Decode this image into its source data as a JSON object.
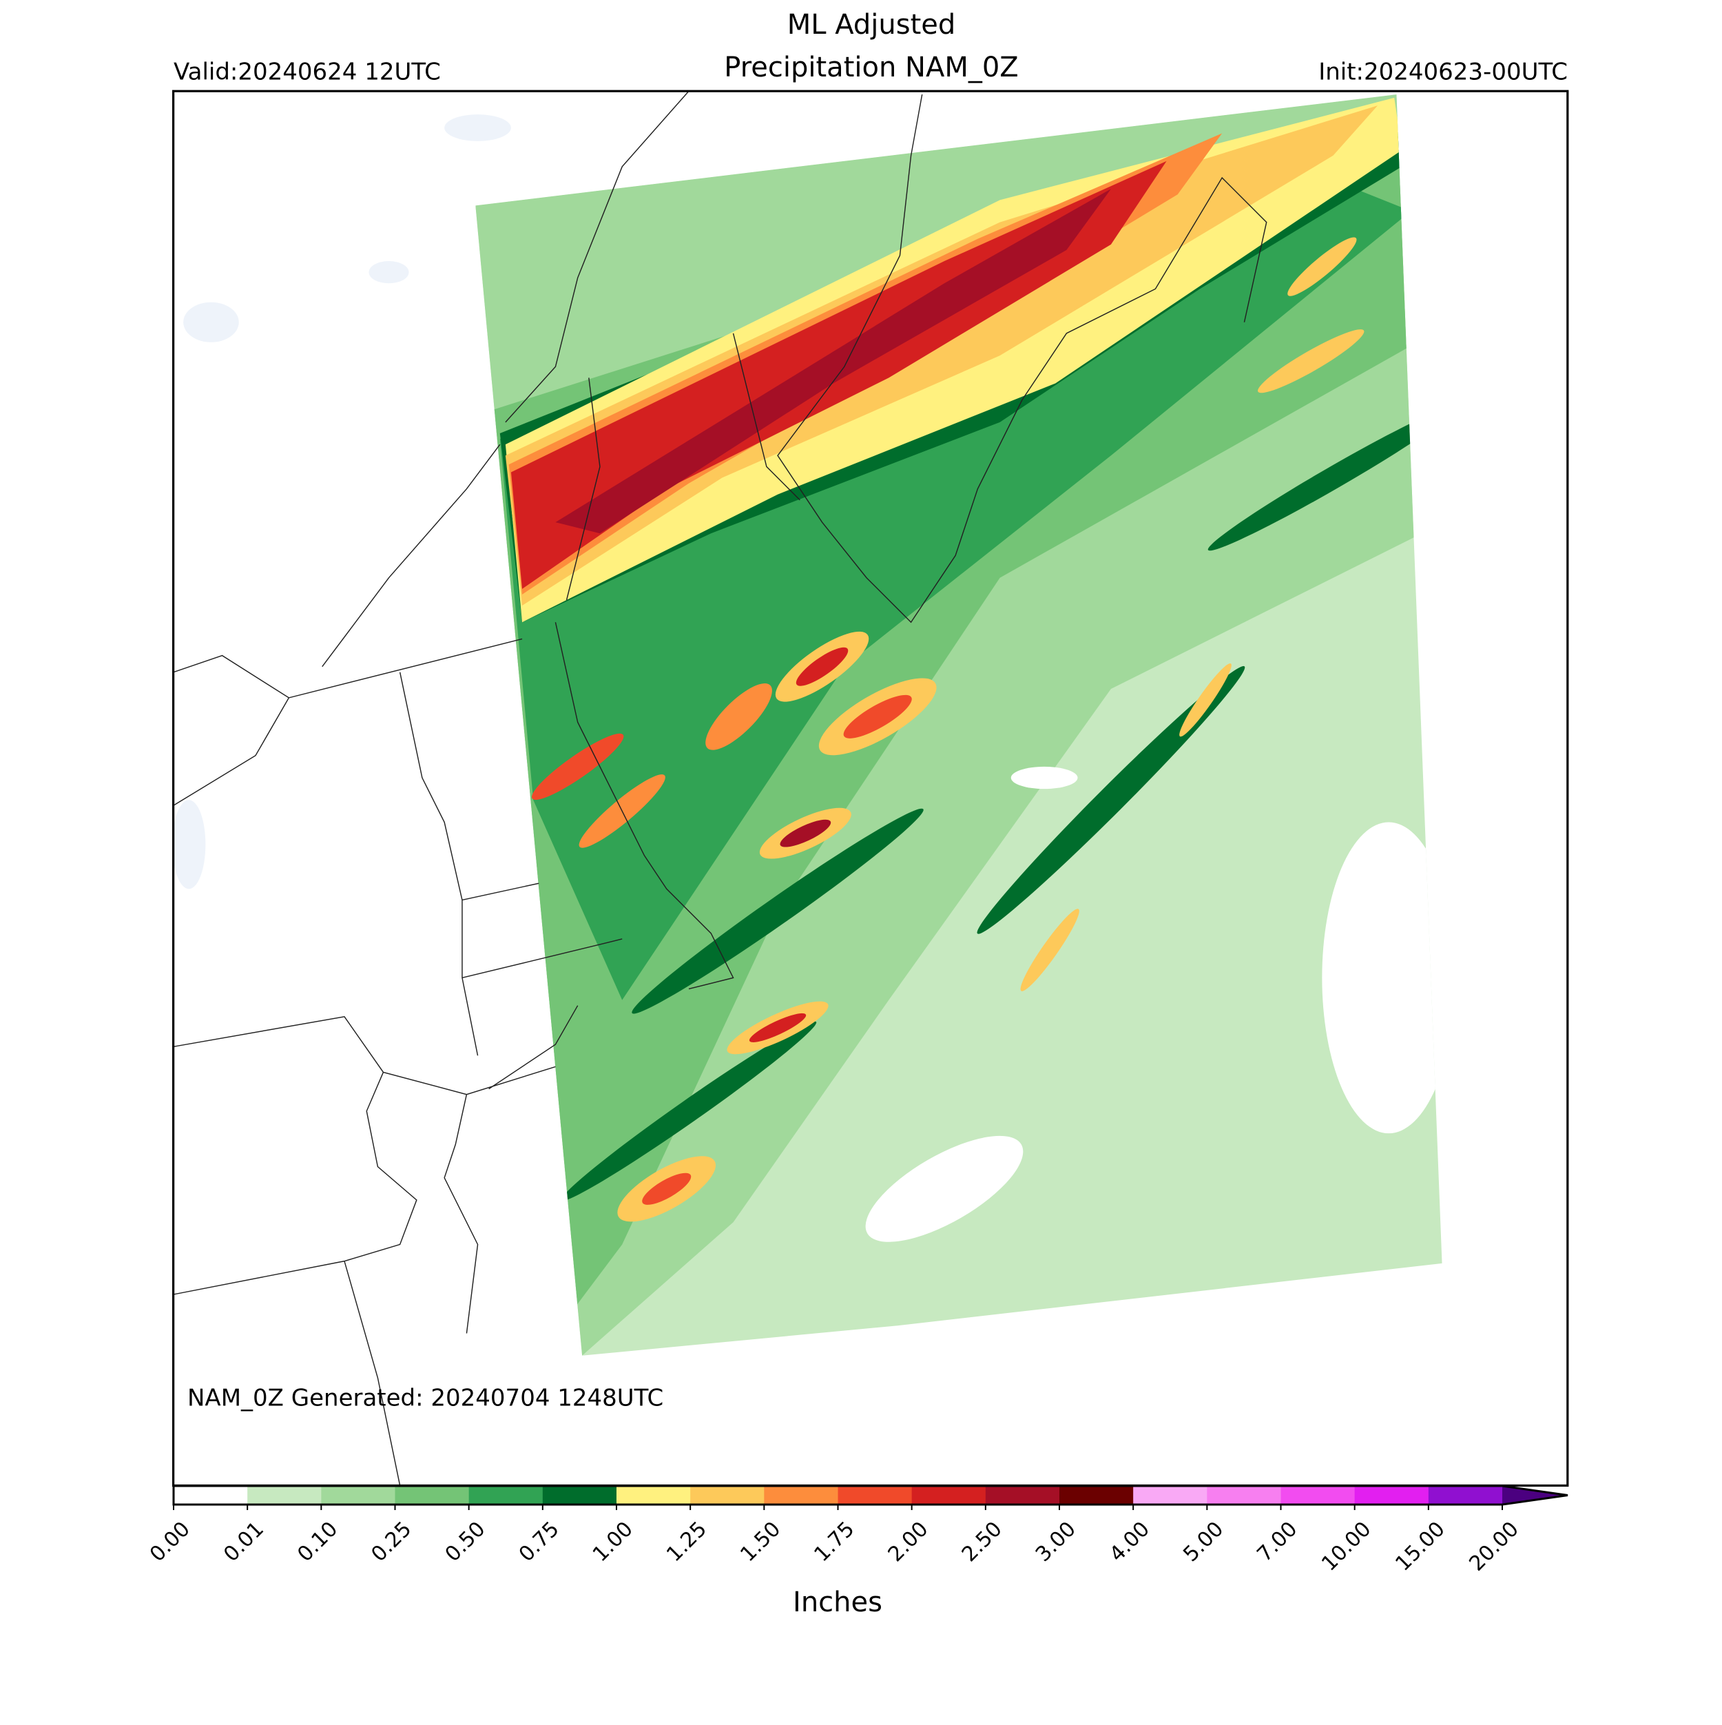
{
  "header": {
    "title_line1": "ML Adjusted",
    "title_line2": "Precipitation NAM_0Z",
    "valid": "Valid:20240624 12UTC",
    "init": "Init:20240623-00UTC"
  },
  "map": {
    "note": "NAM_0Z Generated: 20240704 1248UTC"
  },
  "colorbar": {
    "label": "Inches",
    "boundaries": [
      {
        "value": 0,
        "label": "0.00"
      },
      {
        "value": 0.01,
        "label": "0.01"
      },
      {
        "value": 0.1,
        "label": "0.10"
      },
      {
        "value": 0.25,
        "label": "0.25"
      },
      {
        "value": 0.5,
        "label": "0.50"
      },
      {
        "value": 0.75,
        "label": "0.75"
      },
      {
        "value": 1,
        "label": "1.00"
      },
      {
        "value": 1.25,
        "label": "1.25"
      },
      {
        "value": 1.5,
        "label": "1.50"
      },
      {
        "value": 1.75,
        "label": "1.75"
      },
      {
        "value": 2,
        "label": "2.00"
      },
      {
        "value": 2.5,
        "label": "2.50"
      },
      {
        "value": 3,
        "label": "3.00"
      },
      {
        "value": 4,
        "label": "4.00"
      },
      {
        "value": 5,
        "label": "5.00"
      },
      {
        "value": 7,
        "label": "7.00"
      },
      {
        "value": 10,
        "label": "10.00"
      },
      {
        "value": 15,
        "label": "15.00"
      },
      {
        "value": 20,
        "label": "20.00"
      }
    ],
    "colors": [
      "#ffffff",
      "#c7e9c0",
      "#a1d99b",
      "#74c476",
      "#31a354",
      "#006d2c",
      "#fff17f",
      "#fdc95a",
      "#fd8d3c",
      "#f04a2a",
      "#d42020",
      "#a50f26",
      "#6b0000",
      "#f9a9f5",
      "#f77ff0",
      "#f24cf0",
      "#e21ff0",
      "#9010d0"
    ],
    "extend_color": "#4b0080"
  }
}
